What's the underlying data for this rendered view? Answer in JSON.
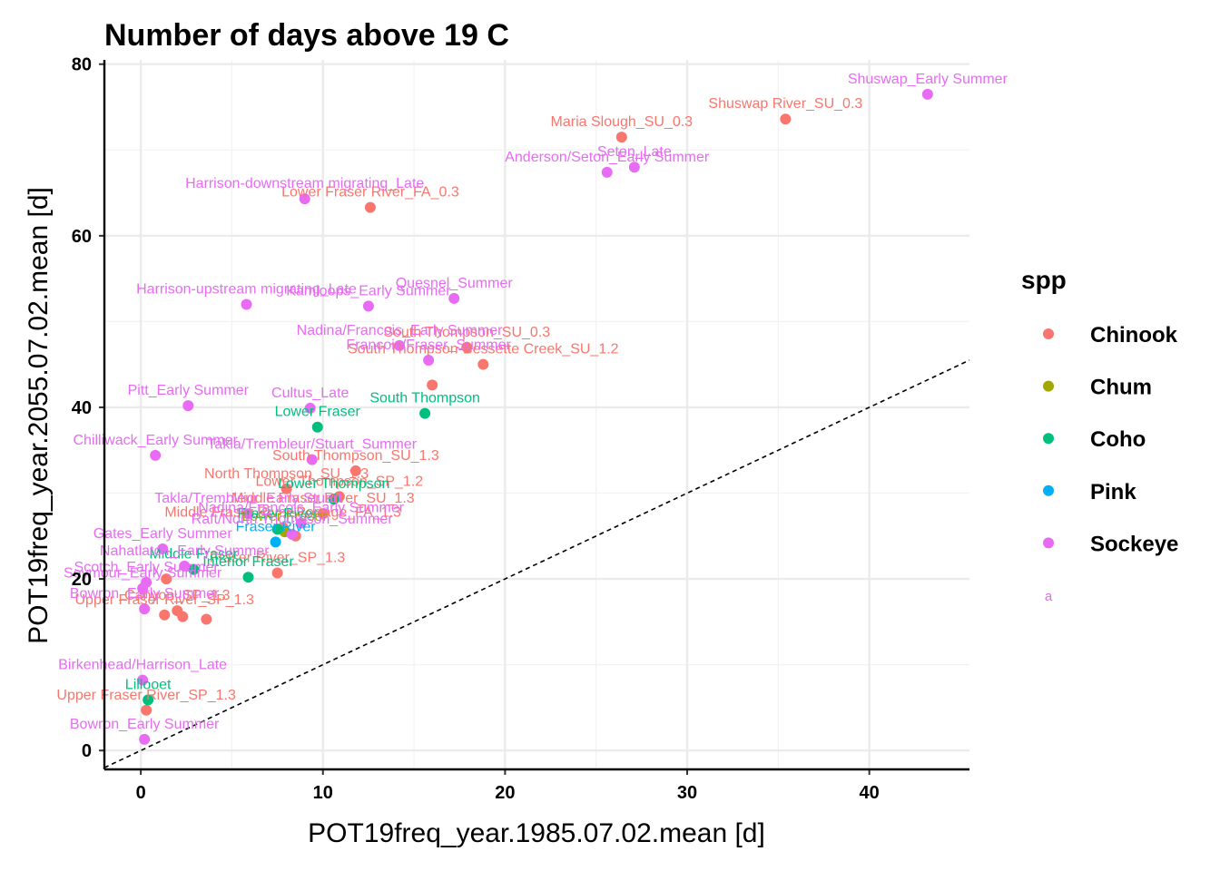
{
  "chart_data": {
    "type": "scatter",
    "title": "Number of days above 19 C",
    "xlabel": "POT19freq_year.1985.07.02.mean [d]",
    "ylabel": "POT19freq_year.2055.07.02.mean [d]",
    "xlim": [
      -2,
      45.5
    ],
    "ylim": [
      -2.2,
      80.5
    ],
    "x_ticks": [
      0,
      10,
      20,
      30,
      40
    ],
    "y_ticks": [
      0,
      20,
      40,
      60,
      80
    ],
    "grid": true,
    "reference_line": {
      "type": "identity",
      "style": "dashed"
    },
    "legend": {
      "title": "spp",
      "position": "right",
      "key_text": "a",
      "entries": [
        {
          "name": "Chinook",
          "color": "#F8766D"
        },
        {
          "name": "Chum",
          "color": "#A3A500"
        },
        {
          "name": "Coho",
          "color": "#00BF7D"
        },
        {
          "name": "Pink",
          "color": "#00B0F6"
        },
        {
          "name": "Sockeye",
          "color": "#E76BF3"
        }
      ]
    },
    "series": [
      {
        "name": "Chinook",
        "color": "#F8766D",
        "points": [
          {
            "x": 35.4,
            "y": 73.6,
            "label": "Shuswap River_SU_0.3"
          },
          {
            "x": 26.4,
            "y": 71.5,
            "label": "Maria Slough_SU_0.3"
          },
          {
            "x": 12.6,
            "y": 63.3,
            "label": "Lower Fraser River_FA_0.3"
          },
          {
            "x": 17.9,
            "y": 47.0,
            "label": "South Thompson_SU_0.3"
          },
          {
            "x": 18.8,
            "y": 45.0,
            "label": "South Thompson-Bessette Creek_SU_1.2"
          },
          {
            "x": 16.0,
            "y": 42.6,
            "label": ""
          },
          {
            "x": 11.8,
            "y": 32.6,
            "label": "South Thompson_SU_1.3"
          },
          {
            "x": 8.0,
            "y": 30.5,
            "label": "North Thompson_SU_1.3"
          },
          {
            "x": 10.9,
            "y": 29.6,
            "label": "Lower Thompson_SP_1.2"
          },
          {
            "x": 10.0,
            "y": 27.6,
            "label": "Middle Fraser River_SU_1.3"
          },
          {
            "x": 7.8,
            "y": 26.0,
            "label": "Middle Fraser River-Portage_FA_1.3"
          },
          {
            "x": 8.5,
            "y": 25.0,
            "label": ""
          },
          {
            "x": 7.5,
            "y": 20.7,
            "label": "Fraser River_SP_1.3"
          },
          {
            "x": 1.4,
            "y": 20.0,
            "label": ""
          },
          {
            "x": 2.0,
            "y": 16.3,
            "label": "Canyon_SP_1.3"
          },
          {
            "x": 1.3,
            "y": 15.8,
            "label": "Upper Fraser River_SP_1.3"
          },
          {
            "x": 2.3,
            "y": 15.6,
            "label": ""
          },
          {
            "x": 3.6,
            "y": 15.3,
            "label": ""
          },
          {
            "x": 0.3,
            "y": 4.7,
            "label": "Upper Fraser River_SP_1.3"
          }
        ]
      },
      {
        "name": "Chum",
        "color": "#A3A500",
        "points": [
          {
            "x": 7.9,
            "y": 25.5,
            "label": "Lower Fraser"
          }
        ]
      },
      {
        "name": "Coho",
        "color": "#00BF7D",
        "points": [
          {
            "x": 15.6,
            "y": 39.3,
            "label": "South Thompson"
          },
          {
            "x": 9.7,
            "y": 37.7,
            "label": "Lower Fraser"
          },
          {
            "x": 10.6,
            "y": 29.3,
            "label": "Lower Thompson"
          },
          {
            "x": 7.5,
            "y": 25.8,
            "label": "Fraser River"
          },
          {
            "x": 5.9,
            "y": 20.2,
            "label": "Interior Fraser"
          },
          {
            "x": 2.9,
            "y": 21.1,
            "label": "Middle Fraser"
          },
          {
            "x": 0.4,
            "y": 5.9,
            "label": "Lillooet"
          }
        ]
      },
      {
        "name": "Pink",
        "color": "#00B0F6",
        "points": [
          {
            "x": 7.4,
            "y": 24.3,
            "label": "Fraser River"
          }
        ]
      },
      {
        "name": "Sockeye",
        "color": "#E76BF3",
        "points": [
          {
            "x": 43.2,
            "y": 76.5,
            "label": "Shuswap_Early Summer"
          },
          {
            "x": 27.1,
            "y": 68.0,
            "label": "Seton_Late"
          },
          {
            "x": 25.6,
            "y": 67.4,
            "label": "Anderson/Seton_Early Summer"
          },
          {
            "x": 9.0,
            "y": 64.3,
            "label": "Harrison-downstream migrating_Late"
          },
          {
            "x": 17.2,
            "y": 52.7,
            "label": "Quesnel_Summer"
          },
          {
            "x": 5.8,
            "y": 52.0,
            "label": "Harrison-upstream migrating_Late"
          },
          {
            "x": 12.5,
            "y": 51.8,
            "label": "Kamloops_Early Summer"
          },
          {
            "x": 15.8,
            "y": 45.5,
            "label": "Francois/Fraser_Summer"
          },
          {
            "x": 2.6,
            "y": 40.2,
            "label": "Pitt_Early Summer"
          },
          {
            "x": 9.3,
            "y": 39.9,
            "label": "Cultus_Late"
          },
          {
            "x": 0.8,
            "y": 34.4,
            "label": "Chilliwack_Early Summer"
          },
          {
            "x": 9.4,
            "y": 33.9,
            "label": "Takla/Trembleur/Stuart_Summer"
          },
          {
            "x": 5.9,
            "y": 27.6,
            "label": "Takla/Trembleur_Early Stuart"
          },
          {
            "x": 8.8,
            "y": 26.5,
            "label": "Nadina/Francois_Early Summer"
          },
          {
            "x": 2.4,
            "y": 21.5,
            "label": "Nahatlatch_Early Summer"
          },
          {
            "x": 0.2,
            "y": 16.5,
            "label": "Bowron_Early Summer"
          },
          {
            "x": 0.1,
            "y": 8.2,
            "label": "Birkenhead/Harrison_Late"
          },
          {
            "x": 0.2,
            "y": 1.3,
            "label": "Bowron_Early Summer"
          },
          {
            "x": 14.2,
            "y": 47.2,
            "label": "Nadina/Francois_Early Summer"
          },
          {
            "x": 8.3,
            "y": 25.2,
            "label": "Raft/North Thompson_Summer"
          },
          {
            "x": 1.2,
            "y": 23.5,
            "label": "Gates_Early Summer"
          },
          {
            "x": 0.3,
            "y": 19.6,
            "label": "Scotch_Early Summer"
          },
          {
            "x": 0.1,
            "y": 18.9,
            "label": "Seymour_Early Summer"
          }
        ]
      }
    ]
  }
}
